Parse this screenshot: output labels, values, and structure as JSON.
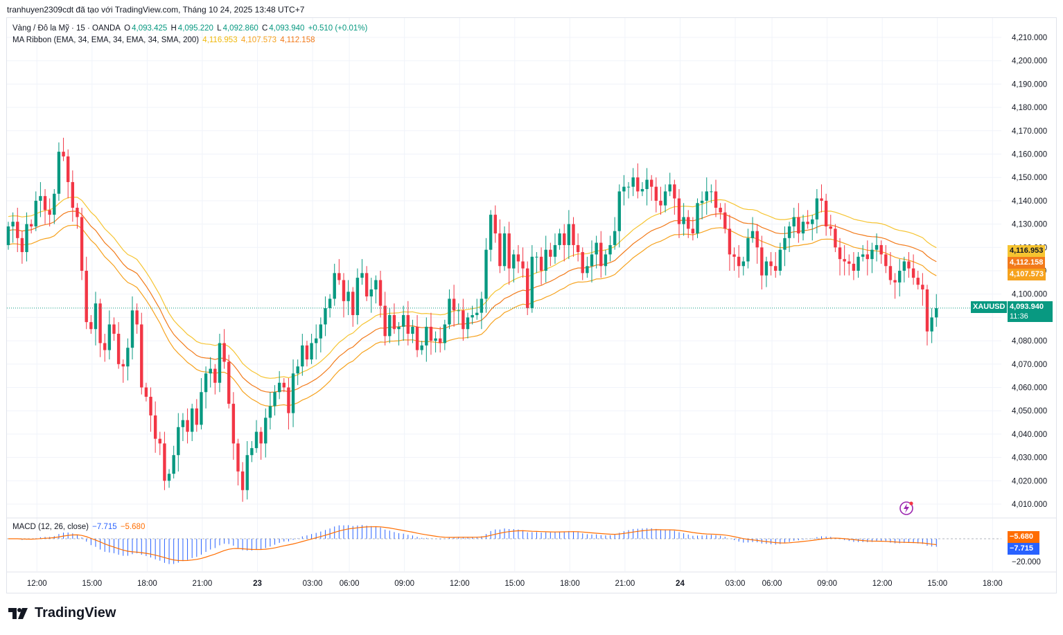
{
  "header": {
    "credit": "tranhuyen2309cdt đã tạo với TradingView.com, Tháng 10 24, 2025 13:48 UTC+7"
  },
  "legend": {
    "symbol": "Vàng / Đô la Mỹ · 15 · OANDA",
    "o_label": "O",
    "o_value": "4,093.425",
    "h_label": "H",
    "h_value": "4,095.220",
    "l_label": "L",
    "l_value": "4,092.860",
    "c_label": "C",
    "c_value": "4,093.940",
    "change": "+0.510 (+0.01%)",
    "ma_name": "MA Ribbon (EMA, 34, EMA, 34, EMA, 34, SMA, 200)",
    "ma_v1": "4,116.953",
    "ma_v2": "4,107.573",
    "ma_v3": "4,112.158",
    "macd_name": "MACD (12, 26, close)",
    "macd_v1": "−7.715",
    "macd_v2": "−5.680"
  },
  "price_tags": {
    "ma_top": "4,116.953",
    "ma_mid": "4,112.158",
    "ma_low": "4,107.573",
    "symbol_tag": "XAUUSD",
    "last_price": "4,093.940",
    "countdown": "11:36",
    "macd_signal": "−5.680",
    "macd_line": "−7.715",
    "macd_axis": "−20.000"
  },
  "colors": {
    "up": "#089981",
    "down": "#f23645",
    "ma1": "#f6c431",
    "ma2": "#f27a1a",
    "ma3": "#f6a21d",
    "macd_hist": "#2962ff",
    "macd_signal": "#ff6d00",
    "grid": "#f0f3fa"
  },
  "branding": {
    "logo_text": "TradingView",
    "alert_icon": "lightning-icon"
  },
  "chart_data": {
    "type": "candlestick",
    "symbol": "XAUUSD",
    "timeframe": "15",
    "ylim": [
      4005,
      4216
    ],
    "y_ticks": [
      "4,010.000",
      "4,020.000",
      "4,030.000",
      "4,040.000",
      "4,050.000",
      "4,060.000",
      "4,070.000",
      "4,080.000",
      "4,090.000",
      "4,100.000",
      "4,110.000",
      "4,120.000",
      "4,130.000",
      "4,140.000",
      "4,150.000",
      "4,160.000",
      "4,170.000",
      "4,180.000",
      "4,190.000",
      "4,200.000",
      "4,210.000"
    ],
    "x_ticks": [
      {
        "label": "12:00",
        "bar": 2
      },
      {
        "label": "15:00",
        "bar": 14
      },
      {
        "label": "18:00",
        "bar": 26
      },
      {
        "label": "21:00",
        "bar": 38
      },
      {
        "label": "23",
        "bar": 50
      },
      {
        "label": "03:00",
        "bar": 62
      },
      {
        "label": "06:00",
        "bar": 70
      },
      {
        "label": "09:00",
        "bar": 82
      },
      {
        "label": "12:00",
        "bar": 94
      },
      {
        "label": "15:00",
        "bar": 106
      },
      {
        "label": "18:00",
        "bar": 118
      },
      {
        "label": "21:00",
        "bar": 130
      },
      {
        "label": "24",
        "bar": 142
      },
      {
        "label": "03:00",
        "bar": 154
      },
      {
        "label": "06:00",
        "bar": 162
      },
      {
        "label": "09:00",
        "bar": 174
      },
      {
        "label": "12:00",
        "bar": 186
      },
      {
        "label": "15:00",
        "bar": 198
      },
      {
        "label": "18:00",
        "bar": 210
      }
    ],
    "closes": [
      4129,
      4131,
      4124,
      4118,
      4130,
      4129,
      4140,
      4142,
      4136,
      4134,
      4143,
      4161,
      4159,
      4148,
      4137,
      4133,
      4110,
      4088,
      4085,
      4096,
      4079,
      4076,
      4087,
      4083,
      4070,
      4069,
      4077,
      4093,
      4087,
      4060,
      4056,
      4048,
      4038,
      4036,
      4020,
      4023,
      4031,
      4043,
      4046,
      4041,
      4051,
      4044,
      4058,
      4066,
      4068,
      4062,
      4079,
      4071,
      4053,
      4036,
      4024,
      4016,
      4031,
      4034,
      4041,
      4036,
      4047,
      4052,
      4058,
      4062,
      4060,
      4049,
      4066,
      4069,
      4078,
      4072,
      4079,
      4081,
      4087,
      4094,
      4098,
      4109,
      4106,
      4097,
      4101,
      4091,
      4107,
      4109,
      4099,
      4102,
      4106,
      4095,
      4082,
      4091,
      4085,
      4086,
      4091,
      4083,
      4086,
      4076,
      4078,
      4086,
      4080,
      4081,
      4079,
      4087,
      4098,
      4093,
      4093,
      4085,
      4090,
      4091,
      4092,
      4098,
      4119,
      4134,
      4126,
      4112,
      4126,
      4111,
      4117,
      4114,
      4111,
      4094,
      4116,
      4116,
      4110,
      4119,
      4116,
      4121,
      4126,
      4121,
      4130,
      4121,
      4118,
      4109,
      4112,
      4117,
      4122,
      4112,
      4117,
      4121,
      4127,
      4144,
      4146,
      4146,
      4150,
      4144,
      4145,
      4149,
      4146,
      4140,
      4138,
      4144,
      4147,
      4141,
      4130,
      4133,
      4128,
      4126,
      4139,
      4140,
      4144,
      4144,
      4137,
      4135,
      4128,
      4117,
      4116,
      4112,
      4114,
      4124,
      4127,
      4120,
      4108,
      4114,
      4112,
      4110,
      4119,
      4124,
      4129,
      4133,
      4126,
      4131,
      4130,
      4132,
      4141,
      4140,
      4129,
      4128,
      4120,
      4115,
      4114,
      4113,
      4110,
      4116,
      4117,
      4115,
      4119,
      4121,
      4117,
      4112,
      4106,
      4105,
      4110,
      4114,
      4111,
      4107,
      4104,
      4102,
      4084,
      4090,
      4094
    ],
    "open_first": 4121,
    "ribbon_ema_top": "4,116.953",
    "ribbon_ema_mid": "4,112.158",
    "ribbon_ema_low": "4,107.573",
    "macd": {
      "macd": -7.715,
      "signal": -5.68,
      "axis_tick": "−20.000"
    }
  }
}
